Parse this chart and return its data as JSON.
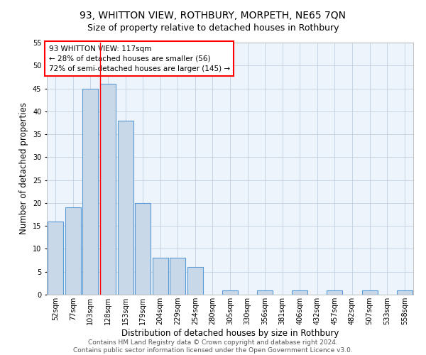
{
  "title": "93, WHITTON VIEW, ROTHBURY, MORPETH, NE65 7QN",
  "subtitle": "Size of property relative to detached houses in Rothbury",
  "xlabel": "Distribution of detached houses by size in Rothbury",
  "ylabel": "Number of detached properties",
  "bin_labels": [
    "52sqm",
    "77sqm",
    "103sqm",
    "128sqm",
    "153sqm",
    "179sqm",
    "204sqm",
    "229sqm",
    "254sqm",
    "280sqm",
    "305sqm",
    "330sqm",
    "356sqm",
    "381sqm",
    "406sqm",
    "432sqm",
    "457sqm",
    "482sqm",
    "507sqm",
    "533sqm",
    "558sqm"
  ],
  "bar_values": [
    16,
    19,
    45,
    46,
    38,
    20,
    8,
    8,
    6,
    0,
    1,
    0,
    1,
    0,
    1,
    0,
    1,
    0,
    1,
    0,
    1
  ],
  "bar_color": "#c8d8e8",
  "bar_edge_color": "#5b9bd5",
  "bar_edge_width": 0.8,
  "grid_color": "#c0d0e0",
  "bg_color": "#eef4fb",
  "annotation_title": "93 WHITTON VIEW: 117sqm",
  "annotation_line2": "← 28% of detached houses are smaller (56)",
  "annotation_line3": "72% of semi-detached houses are larger (145) →",
  "annotation_box_color": "white",
  "annotation_box_edge": "red",
  "ylim": [
    0,
    55
  ],
  "yticks": [
    0,
    5,
    10,
    15,
    20,
    25,
    30,
    35,
    40,
    45,
    50,
    55
  ],
  "title_fontsize": 10,
  "subtitle_fontsize": 9,
  "xlabel_fontsize": 8.5,
  "ylabel_fontsize": 8.5,
  "tick_fontsize": 7,
  "annotation_fontsize": 7.5,
  "footer_line1": "Contains HM Land Registry data © Crown copyright and database right 2024.",
  "footer_line2": "Contains public sector information licensed under the Open Government Licence v3.0.",
  "footer_fontsize": 6.5
}
